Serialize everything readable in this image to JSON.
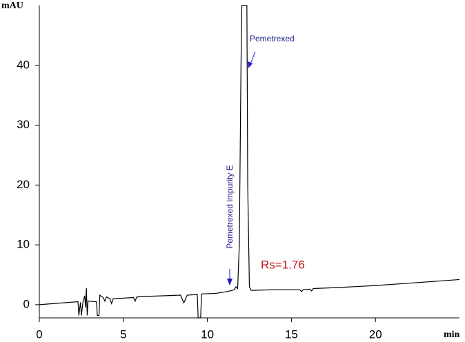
{
  "chart_data": {
    "type": "line",
    "xlabel": "min",
    "ylabel": "mAU",
    "x": [
      0,
      2.3,
      2.35,
      2.45,
      2.5,
      2.6,
      2.7,
      2.75,
      2.8,
      2.85,
      2.9,
      3.4,
      3.45,
      3.55,
      3.6,
      3.8,
      3.9,
      4.0,
      4.2,
      4.3,
      4.4,
      5.0,
      5.6,
      5.7,
      5.8,
      6.5,
      7.5,
      8.4,
      8.6,
      8.8,
      9.4,
      9.45,
      9.6,
      9.65,
      10.5,
      11.2,
      11.6,
      11.7,
      11.8,
      11.9,
      12.0,
      12.05,
      12.35,
      12.4,
      12.5,
      12.6,
      14,
      15.5,
      15.6,
      15.7,
      16.1,
      16.2,
      16.3,
      18,
      20,
      22,
      25
    ],
    "series": [
      {
        "color": "#000000",
        "values": [
          0,
          0.5,
          -1.8,
          0.4,
          -1.8,
          0.5,
          1.5,
          -0.5,
          2.8,
          -1.8,
          0.6,
          0.5,
          -1.8,
          -1.8,
          1.6,
          1.2,
          0.6,
          1.3,
          1.0,
          0.2,
          1.0,
          1.1,
          1.2,
          0.6,
          1.3,
          1.4,
          1.5,
          1.6,
          0.3,
          1.6,
          1.7,
          -2.2,
          -2.2,
          1.8,
          1.9,
          2.2,
          2.5,
          3.0,
          2.7,
          10,
          40,
          50,
          50,
          20,
          3,
          2.4,
          2.5,
          2.5,
          2.2,
          2.5,
          2.6,
          2.3,
          2.7,
          2.9,
          3.2,
          3.6,
          4.2
        ]
      }
    ],
    "xlim": [
      0,
      25
    ],
    "xticks": [
      0,
      5,
      10,
      15,
      20
    ],
    "ylim": [
      -2.2,
      50
    ],
    "yticks": [
      0,
      10,
      20,
      30,
      40
    ],
    "annotations": [
      "Pemetrexed",
      "Pemetrexed impurity E",
      "Rs=1.76"
    ]
  }
}
